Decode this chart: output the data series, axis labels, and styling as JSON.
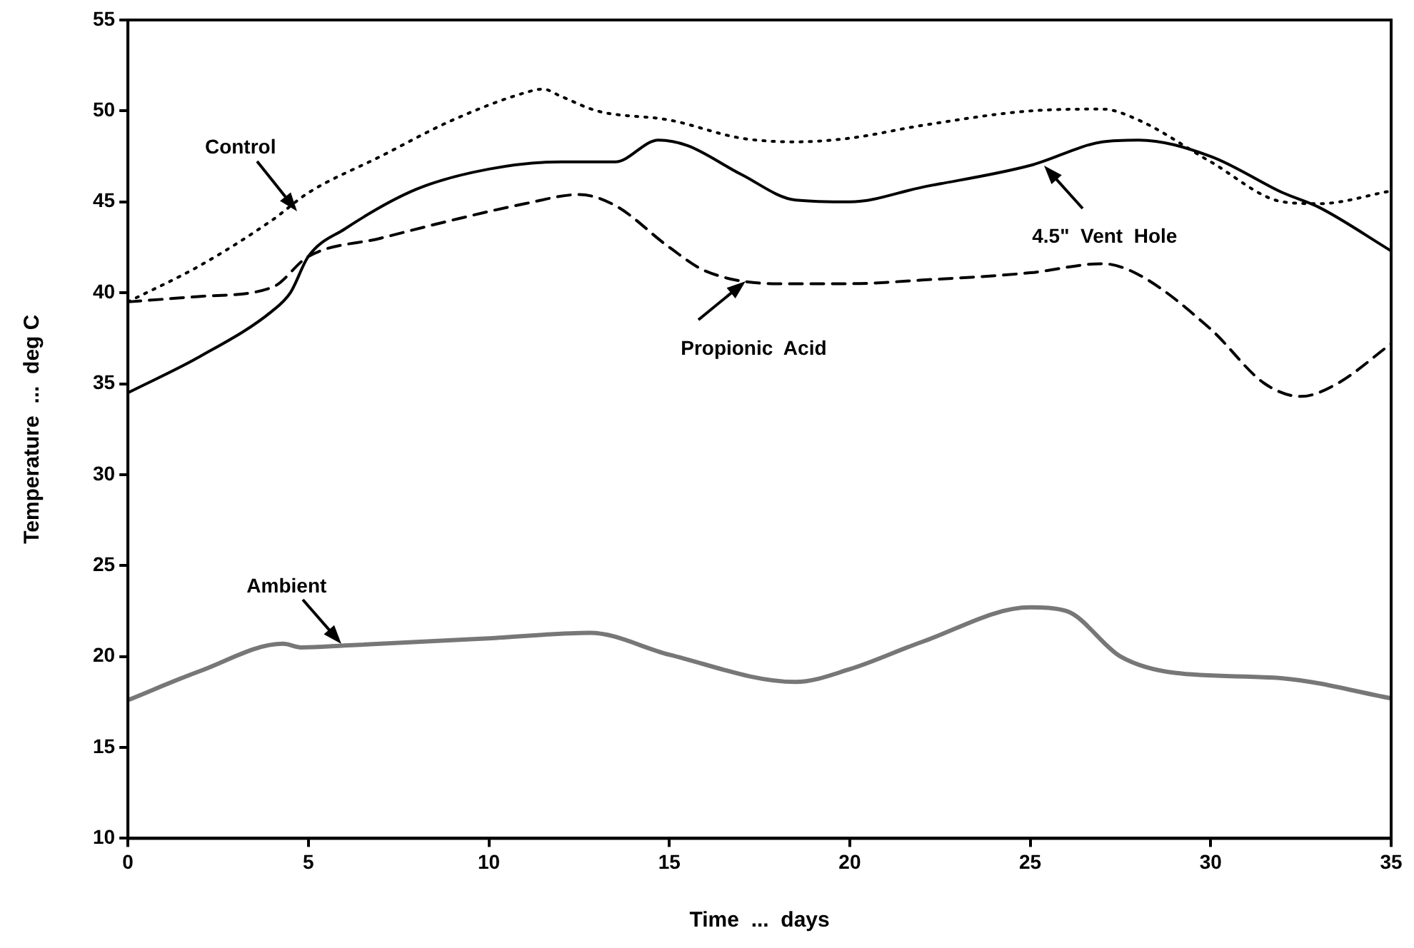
{
  "chart_data": {
    "type": "line",
    "xlabel": "Time  ...  days",
    "ylabel": "Temperature  ...  deg C",
    "xlim": [
      0,
      35
    ],
    "xticks": [
      0,
      5,
      10,
      15,
      20,
      25,
      30,
      35
    ],
    "ylim": [
      10,
      55
    ],
    "yticks": [
      10,
      15,
      20,
      25,
      30,
      35,
      40,
      45,
      50,
      55
    ],
    "grid": false,
    "legend": false,
    "marker": "none",
    "annotations": [
      {
        "text": "Control",
        "x": 4.7,
        "y": 44.5
      },
      {
        "text": "4.5\"  Vent  Hole",
        "x": 25.4,
        "y": 47
      },
      {
        "text": "Propionic  Acid",
        "x": 17.1,
        "y": 40.6
      },
      {
        "text": "Ambient",
        "x": 5.9,
        "y": 20.7
      }
    ],
    "series": [
      {
        "color": "#000000",
        "line_style": "dotted",
        "x": [
          0,
          2,
          4,
          5,
          7,
          9,
          11,
          11.5,
          12,
          13,
          15,
          17,
          18.5,
          20,
          22,
          25,
          27,
          28,
          30,
          32,
          33,
          35
        ],
        "values": [
          39.5,
          41.5,
          44,
          45.5,
          47.5,
          49.5,
          51,
          51.2,
          50.8,
          50,
          49.5,
          48.5,
          48.3,
          48.5,
          49.2,
          50,
          50.1,
          49.5,
          47.2,
          45,
          44.9,
          45.6
        ]
      },
      {
        "color": "#000000",
        "line_style": "solid",
        "x": [
          0,
          2,
          4,
          4.5,
          5,
          6,
          8,
          10,
          12,
          13.5,
          14.7,
          15.5,
          17,
          18.5,
          20,
          22,
          25,
          27,
          28,
          30,
          32,
          33,
          35
        ],
        "values": [
          34.5,
          36.5,
          39,
          40,
          42,
          43.5,
          45.7,
          46.8,
          47.2,
          47.2,
          48.4,
          48.1,
          46.5,
          45.1,
          45,
          45.8,
          47,
          48.3,
          48.4,
          47.5,
          45.5,
          44.7,
          42.3
        ]
      },
      {
        "color": "#000000",
        "line_style": "dashed",
        "x": [
          0,
          2,
          4,
          5,
          7,
          9,
          11,
          12.5,
          13.5,
          15,
          16,
          18,
          20,
          22,
          25,
          27,
          28,
          30,
          31.5,
          32.5,
          33.5,
          35
        ],
        "values": [
          39.5,
          39.8,
          40.3,
          42,
          43,
          44,
          44.9,
          45.4,
          44.8,
          42.5,
          41.2,
          40.5,
          40.5,
          40.7,
          41.1,
          41.6,
          41,
          38,
          35,
          34.3,
          35,
          37.2
        ]
      },
      {
        "color": "#777777",
        "line_style": "solid",
        "x": [
          0,
          2,
          4.3,
          4.8,
          6,
          10,
          12.8,
          15,
          18.5,
          20,
          22,
          25,
          26,
          27.5,
          29,
          32,
          35
        ],
        "values": [
          17.6,
          19.2,
          20.7,
          20.5,
          20.6,
          21,
          21.3,
          20.1,
          18.6,
          19.3,
          20.8,
          22.7,
          22.5,
          20,
          19.1,
          18.8,
          17.7
        ]
      }
    ]
  }
}
